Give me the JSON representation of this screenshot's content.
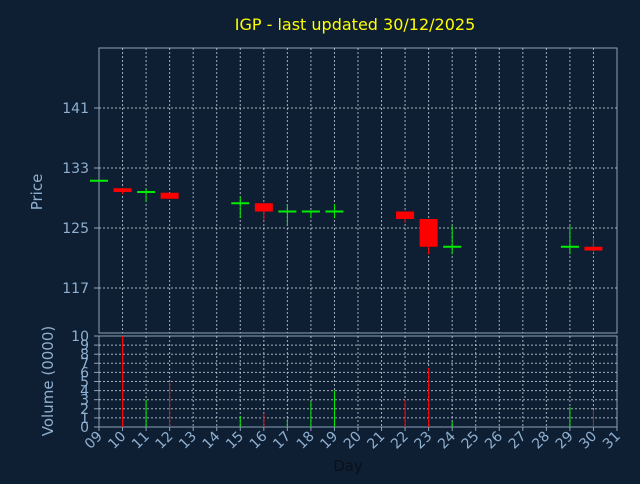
{
  "colors": {
    "background": "#0f1f33",
    "frame": "#8aa0b8",
    "grid": "#c8d2dc",
    "title": "#ffff00",
    "axis_text": "#8fb0d0",
    "up": "#00ee00",
    "down": "#ff0000"
  },
  "chart_data": {
    "type": "candlestick",
    "title": "IGP - last updated 30/12/2025",
    "xlabel": "Day",
    "price_panel": {
      "ylabel": "Price",
      "yticks": [
        117,
        125,
        133,
        141
      ],
      "ylim": [
        111,
        149
      ],
      "grid": true
    },
    "volume_panel": {
      "ylabel": "Volume (0000)",
      "yticks": [
        0,
        1,
        2,
        3,
        4,
        5,
        6,
        7,
        8,
        9,
        10
      ],
      "ytick_labels": [
        "0",
        "1",
        "2",
        "3",
        "4",
        "5",
        "6",
        "7",
        "8",
        "9",
        "10"
      ],
      "ylim": [
        0,
        10
      ],
      "grid": true
    },
    "x_ticks": [
      "09",
      "10",
      "11",
      "12",
      "13",
      "14",
      "15",
      "16",
      "17",
      "18",
      "19",
      "20",
      "21",
      "22",
      "23",
      "24",
      "25",
      "26",
      "27",
      "28",
      "29",
      "30",
      "31"
    ],
    "candles": [
      {
        "day": 9,
        "open": 131.3,
        "high": 131.3,
        "low": 131.3,
        "close": 131.3,
        "volume": 0.0
      },
      {
        "day": 10,
        "open": 130.3,
        "high": 130.3,
        "low": 129.5,
        "close": 129.8,
        "volume": 10.0
      },
      {
        "day": 11,
        "open": 129.8,
        "high": 130.3,
        "low": 128.5,
        "close": 129.8,
        "volume": 3.0
      },
      {
        "day": 12,
        "open": 129.7,
        "high": 129.7,
        "low": 128.9,
        "close": 128.9,
        "volume": 5.0
      },
      {
        "day": 15,
        "open": 128.3,
        "high": 129.2,
        "low": 126.3,
        "close": 128.3,
        "volume": 1.2
      },
      {
        "day": 16,
        "open": 128.3,
        "high": 128.3,
        "low": 126.0,
        "close": 127.2,
        "volume": 1.5
      },
      {
        "day": 17,
        "open": 127.2,
        "high": 128.2,
        "low": 125.3,
        "close": 127.2,
        "volume": 0.9
      },
      {
        "day": 18,
        "open": 127.2,
        "high": 127.2,
        "low": 126.3,
        "close": 127.2,
        "volume": 2.8
      },
      {
        "day": 19,
        "open": 127.2,
        "high": 128.2,
        "low": 126.3,
        "close": 127.2,
        "volume": 4.0
      },
      {
        "day": 22,
        "open": 127.2,
        "high": 127.2,
        "low": 125.7,
        "close": 126.2,
        "volume": 3.0
      },
      {
        "day": 23,
        "open": 126.2,
        "high": 126.2,
        "low": 121.5,
        "close": 122.5,
        "volume": 6.5
      },
      {
        "day": 24,
        "open": 122.5,
        "high": 125.3,
        "low": 121.5,
        "close": 122.5,
        "volume": 0.6
      },
      {
        "day": 29,
        "open": 122.5,
        "high": 125.3,
        "low": 121.5,
        "close": 122.5,
        "volume": 2.2
      },
      {
        "day": 30,
        "open": 122.5,
        "high": 123.6,
        "low": 121.7,
        "close": 122.0,
        "volume": 1.9
      }
    ]
  }
}
